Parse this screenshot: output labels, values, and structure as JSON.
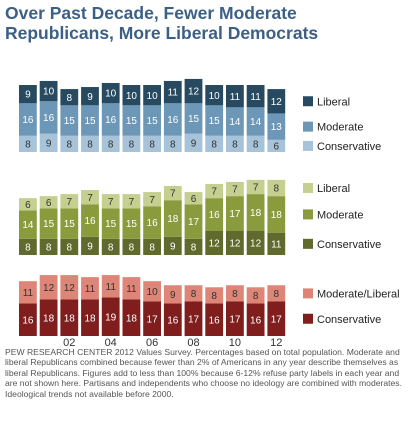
{
  "title": "Over Past Decade, Fewer Moderate Republicans, More Liberal Democrats",
  "footnote": "PEW RESEARCH CENTER 2012 Values Survey.  Percentages based on total population. Moderate and liberal Republicans combined because fewer than 2% of Americans in any year describe themselves as liberal Republicans. Figures add to less than 100% because 6-12% refuse party labels in each year and are not shown here. Partisans and independents who choose no ideology are combined with moderates. Ideological trends not available before 2000.",
  "chart_data": {
    "type": "bar",
    "stacked": true,
    "x": [
      "2000",
      "2001",
      "2002",
      "2003",
      "2004",
      "2005",
      "2006",
      "2007",
      "2008",
      "2009",
      "2010",
      "2011",
      "2012"
    ],
    "x_tick_labels": [
      "",
      "02",
      "",
      "04",
      "",
      "06",
      "",
      "08",
      "",
      "10",
      "",
      "12"
    ],
    "x_tick_positions": [
      "2002",
      "2004",
      "2006",
      "2008",
      "2010",
      "2012"
    ],
    "grid": false,
    "legend": "right of each group",
    "groups": [
      {
        "series": [
          {
            "name": "Liberal",
            "color": "#274a60",
            "values": [
              9,
              10,
              8,
              9,
              10,
              10,
              10,
              11,
              12,
              10,
              11,
              11,
              12
            ]
          },
          {
            "name": "Moderate",
            "color": "#6d97b7",
            "values": [
              16,
              16,
              15,
              15,
              16,
              15,
              15,
              16,
              15,
              15,
              14,
              14,
              13
            ]
          },
          {
            "name": "Conservative",
            "color": "#a6c3d9",
            "values": [
              8,
              9,
              8,
              8,
              8,
              8,
              8,
              8,
              9,
              8,
              8,
              8,
              6
            ]
          }
        ]
      },
      {
        "series": [
          {
            "name": "Liberal",
            "color": "#c5cf8f",
            "values": [
              6,
              6,
              7,
              7,
              7,
              7,
              7,
              7,
              6,
              7,
              7,
              7,
              8
            ]
          },
          {
            "name": "Moderate",
            "color": "#8a9b3d",
            "values": [
              14,
              15,
              15,
              16,
              15,
              15,
              16,
              18,
              17,
              16,
              17,
              18,
              18
            ]
          },
          {
            "name": "Conservative",
            "color": "#5f6a2c",
            "values": [
              8,
              8,
              8,
              9,
              8,
              8,
              8,
              9,
              8,
              12,
              12,
              12,
              11
            ]
          }
        ]
      },
      {
        "series": [
          {
            "name": "Moderate/Liberal",
            "color": "#dd8576",
            "values": [
              11,
              12,
              12,
              11,
              11,
              11,
              10,
              9,
              8,
              8,
              8,
              8,
              8
            ]
          },
          {
            "name": "Conservative",
            "color": "#7f1e1d",
            "values": [
              16,
              18,
              18,
              18,
              19,
              18,
              17,
              16,
              17,
              16,
              17,
              16,
              17
            ]
          }
        ]
      }
    ]
  }
}
